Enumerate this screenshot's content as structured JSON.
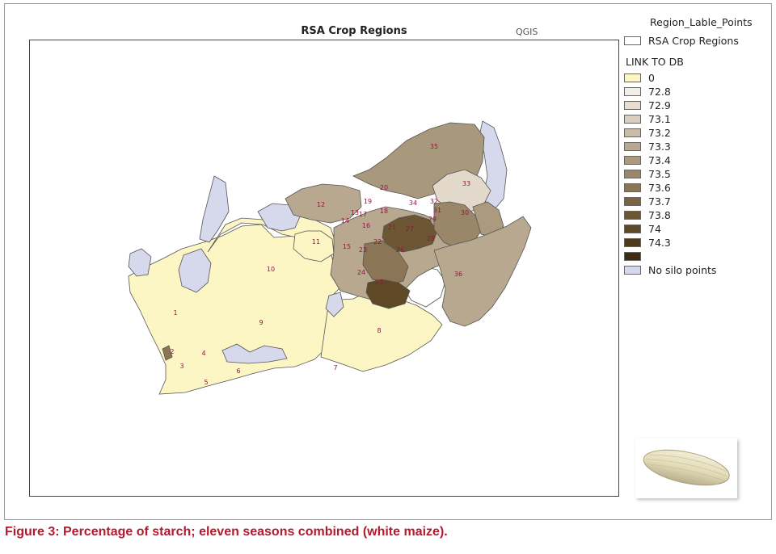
{
  "map": {
    "title": "RSA Crop Regions",
    "software_label": "QGIS"
  },
  "legend": {
    "layer_points": "Region_Lable_Points",
    "layer_regions": "RSA Crop Regions",
    "field_title": "LINK TO DB",
    "classes": [
      {
        "label": "0",
        "color": "#fbf6c4"
      },
      {
        "label": "72.8",
        "color": "#f4efe6"
      },
      {
        "label": "72.9",
        "color": "#e6ddd0"
      },
      {
        "label": "73.1",
        "color": "#d8cfbf"
      },
      {
        "label": "73.2",
        "color": "#c9bca8"
      },
      {
        "label": "73.3",
        "color": "#b8a88f"
      },
      {
        "label": "73.4",
        "color": "#ab9a7e"
      },
      {
        "label": "73.5",
        "color": "#9a876a"
      },
      {
        "label": "73.6",
        "color": "#8a7656"
      },
      {
        "label": "73.7",
        "color": "#7a6543"
      },
      {
        "label": "73.8",
        "color": "#6c5633"
      },
      {
        "label": "74",
        "color": "#5e4826"
      },
      {
        "label": "74.3",
        "color": "#503a1a"
      },
      {
        "label": "",
        "color": "#3f2c10"
      }
    ],
    "no_silo_label": "No silo points",
    "no_silo_color": "#d6d8ec"
  },
  "region_labels": [
    "1",
    "2",
    "3",
    "4",
    "5",
    "6",
    "7",
    "8",
    "9",
    "10",
    "11",
    "12",
    "13",
    "14",
    "15",
    "16",
    "17",
    "18",
    "19",
    "20",
    "21",
    "22",
    "23",
    "24",
    "25",
    "26",
    "27",
    "28",
    "29",
    "30",
    "31",
    "32",
    "33",
    "34",
    "35",
    "36"
  ],
  "caption": "Figure 3: Percentage of starch; eleven seasons combined (white maize)."
}
